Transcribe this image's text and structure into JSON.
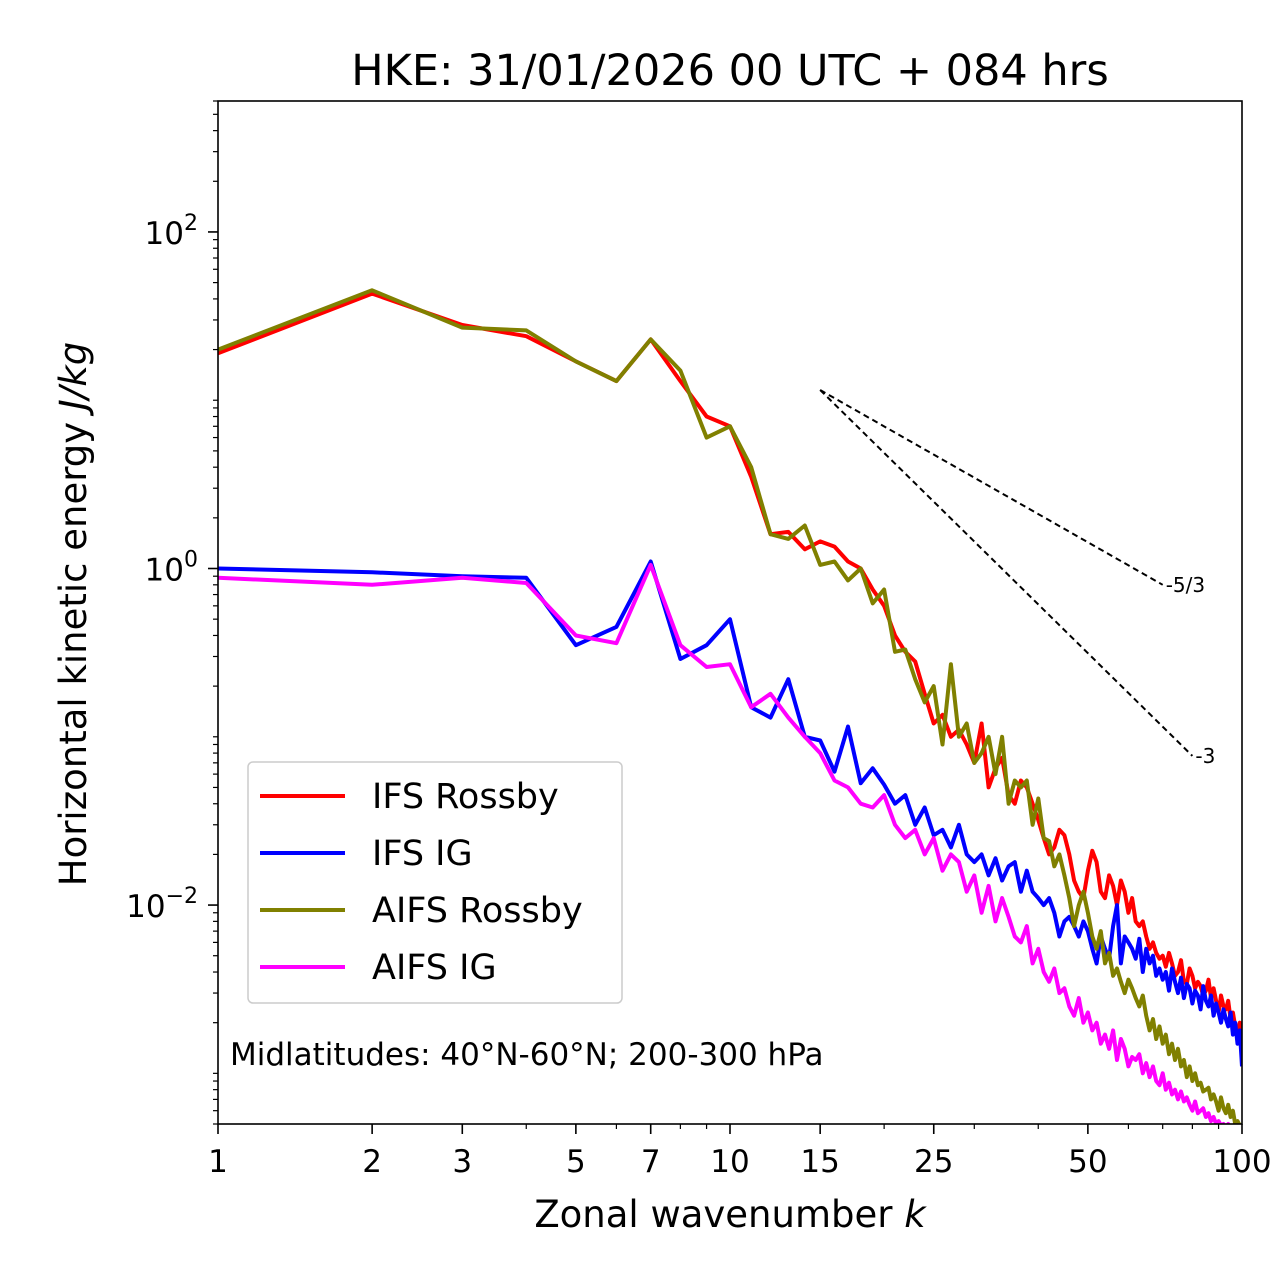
{
  "chart_data": {
    "type": "line",
    "title": "HKE: 31/01/2026 00 UTC + 084 hrs",
    "xlabel": "Zonal wavenumber",
    "xlabel_var": "k",
    "ylabel": "Horizontal kinetic energy",
    "ylabel_unit": "J/kg",
    "xscale": "log",
    "yscale": "log",
    "xlim": [
      1,
      100
    ],
    "ylim": [
      0.0005,
      600
    ],
    "x_ticks": [
      {
        "value": 1,
        "label": "1"
      },
      {
        "value": 2,
        "label": "2"
      },
      {
        "value": 3,
        "label": "3"
      },
      {
        "value": 5,
        "label": "5"
      },
      {
        "value": 7,
        "label": "7"
      },
      {
        "value": 10,
        "label": "10"
      },
      {
        "value": 15,
        "label": "15"
      },
      {
        "value": 25,
        "label": "25"
      },
      {
        "value": 50,
        "label": "50"
      },
      {
        "value": 100,
        "label": "100"
      }
    ],
    "y_ticks": [
      {
        "value": 100,
        "base": "10",
        "exp": "2"
      },
      {
        "value": 1,
        "base": "10",
        "exp": "0"
      },
      {
        "value": 0.01,
        "base": "10",
        "exp": "−2"
      }
    ],
    "annotation": "Midlatitudes: 40°N-60°N; 200-300 hPa",
    "legend_position": "lower-left",
    "reference_lines": [
      {
        "label": "-5/3",
        "x": [
          15,
          70
        ],
        "y": [
          11.5,
          0.8
        ],
        "color": "#000000",
        "style": "dashed"
      },
      {
        "label": "-3",
        "x": [
          15,
          80
        ],
        "y": [
          11.5,
          0.077
        ],
        "color": "#000000",
        "style": "dashed"
      }
    ],
    "series": [
      {
        "name": "IFS Rossby",
        "color": "#ff0000",
        "x": [
          1,
          2,
          3,
          4,
          5,
          6,
          7,
          8,
          9,
          10,
          11,
          12,
          13,
          14,
          15,
          16,
          17,
          18,
          19,
          20,
          21,
          22,
          23,
          24,
          25,
          26,
          27,
          28,
          29,
          30,
          31,
          32,
          33,
          34,
          35,
          36,
          37,
          38,
          39,
          40,
          41,
          42,
          43,
          44,
          45,
          46,
          47,
          48,
          49,
          50,
          51,
          52,
          53,
          54,
          55,
          56,
          57,
          58,
          59,
          60,
          61,
          62,
          63,
          64,
          65,
          66,
          67,
          68,
          69,
          70,
          71,
          72,
          73,
          74,
          75,
          76,
          77,
          78,
          79,
          80,
          81,
          82,
          83,
          84,
          85,
          86,
          87,
          88,
          89,
          90,
          91,
          92,
          93,
          94,
          95,
          96,
          97,
          98,
          99,
          100
        ],
        "y": [
          19,
          43,
          28,
          24,
          17,
          13,
          23,
          13,
          8,
          7,
          3.5,
          1.6,
          1.65,
          1.3,
          1.45,
          1.35,
          1.1,
          1.0,
          0.75,
          0.6,
          0.4,
          0.32,
          0.28,
          0.18,
          0.12,
          0.135,
          0.1,
          0.11,
          0.09,
          0.07,
          0.12,
          0.05,
          0.065,
          0.075,
          0.045,
          0.04,
          0.055,
          0.05,
          0.04,
          0.032,
          0.025,
          0.02,
          0.022,
          0.028,
          0.026,
          0.02,
          0.014,
          0.012,
          0.011,
          0.016,
          0.021,
          0.018,
          0.012,
          0.011,
          0.015,
          0.013,
          0.01,
          0.014,
          0.012,
          0.009,
          0.011,
          0.008,
          0.0075,
          0.008,
          0.0065,
          0.0055,
          0.006,
          0.0052,
          0.0048,
          0.005,
          0.0043,
          0.0052,
          0.0045,
          0.0038,
          0.004,
          0.0047,
          0.0035,
          0.0034,
          0.0042,
          0.0038,
          0.0032,
          0.0035,
          0.0033,
          0.0029,
          0.0031,
          0.0036,
          0.0028,
          0.0032,
          0.0027,
          0.0023,
          0.0029,
          0.0025,
          0.0024,
          0.0027,
          0.0021,
          0.0023,
          0.0019,
          0.0018,
          0.002,
          0.0013
        ]
      },
      {
        "name": "IFS IG",
        "color": "#0000ff",
        "x": [
          1,
          2,
          3,
          4,
          5,
          6,
          7,
          8,
          9,
          10,
          11,
          12,
          13,
          14,
          15,
          16,
          17,
          18,
          19,
          20,
          21,
          22,
          23,
          24,
          25,
          26,
          27,
          28,
          29,
          30,
          31,
          32,
          33,
          34,
          35,
          36,
          37,
          38,
          39,
          40,
          41,
          42,
          43,
          44,
          45,
          46,
          47,
          48,
          49,
          50,
          51,
          52,
          53,
          54,
          55,
          56,
          57,
          58,
          59,
          60,
          61,
          62,
          63,
          64,
          65,
          66,
          67,
          68,
          69,
          70,
          71,
          72,
          73,
          74,
          75,
          76,
          77,
          78,
          79,
          80,
          81,
          82,
          83,
          84,
          85,
          86,
          87,
          88,
          89,
          90,
          91,
          92,
          93,
          94,
          95,
          96,
          97,
          98,
          99,
          100
        ],
        "y": [
          1.0,
          0.95,
          0.9,
          0.88,
          0.35,
          0.45,
          1.1,
          0.29,
          0.35,
          0.5,
          0.15,
          0.13,
          0.22,
          0.1,
          0.095,
          0.062,
          0.115,
          0.053,
          0.065,
          0.052,
          0.04,
          0.045,
          0.03,
          0.038,
          0.026,
          0.028,
          0.022,
          0.03,
          0.02,
          0.018,
          0.02,
          0.015,
          0.019,
          0.014,
          0.017,
          0.018,
          0.012,
          0.016,
          0.012,
          0.011,
          0.01,
          0.011,
          0.009,
          0.0065,
          0.008,
          0.0085,
          0.0075,
          0.0065,
          0.008,
          0.007,
          0.0055,
          0.0045,
          0.0065,
          0.0055,
          0.0048,
          0.0075,
          0.01,
          0.0045,
          0.0065,
          0.006,
          0.0055,
          0.0048,
          0.0063,
          0.004,
          0.0055,
          0.0045,
          0.005,
          0.0038,
          0.0042,
          0.0036,
          0.004,
          0.0031,
          0.0042,
          0.0035,
          0.003,
          0.0037,
          0.0028,
          0.0034,
          0.0032,
          0.0026,
          0.0031,
          0.0029,
          0.0024,
          0.0033,
          0.0027,
          0.0025,
          0.0029,
          0.0022,
          0.0026,
          0.0023,
          0.002,
          0.0024,
          0.0021,
          0.0019,
          0.0023,
          0.0017,
          0.002,
          0.0015,
          0.0018,
          0.0011
        ]
      },
      {
        "name": "AIFS Rossby",
        "color": "#808000",
        "x": [
          1,
          2,
          3,
          4,
          5,
          6,
          7,
          8,
          9,
          10,
          11,
          12,
          13,
          14,
          15,
          16,
          17,
          18,
          19,
          20,
          21,
          22,
          23,
          24,
          25,
          26,
          27,
          28,
          29,
          30,
          31,
          32,
          33,
          34,
          35,
          36,
          37,
          38,
          39,
          40,
          41,
          42,
          43,
          44,
          45,
          46,
          47,
          48,
          49,
          50,
          51,
          52,
          53,
          54,
          55,
          56,
          57,
          58,
          59,
          60,
          61,
          62,
          63,
          64,
          65,
          66,
          67,
          68,
          69,
          70,
          71,
          72,
          73,
          74,
          75,
          76,
          77,
          78,
          79,
          80,
          81,
          82,
          83,
          84,
          85,
          86,
          87,
          88,
          89,
          90,
          91,
          92,
          93,
          94,
          95,
          96,
          97,
          98,
          99,
          100
        ],
        "y": [
          20,
          45,
          27,
          26,
          17,
          13,
          23,
          15,
          6,
          7,
          4,
          1.6,
          1.5,
          1.8,
          1.05,
          1.1,
          0.85,
          1.0,
          0.62,
          0.75,
          0.32,
          0.33,
          0.22,
          0.16,
          0.2,
          0.09,
          0.27,
          0.1,
          0.12,
          0.07,
          0.08,
          0.1,
          0.06,
          0.1,
          0.04,
          0.055,
          0.05,
          0.055,
          0.03,
          0.043,
          0.025,
          0.024,
          0.017,
          0.02,
          0.015,
          0.011,
          0.0075,
          0.01,
          0.012,
          0.009,
          0.0065,
          0.0055,
          0.007,
          0.0045,
          0.0052,
          0.0038,
          0.0042,
          0.0035,
          0.003,
          0.0036,
          0.0032,
          0.0028,
          0.0025,
          0.0029,
          0.0022,
          0.0018,
          0.0021,
          0.0016,
          0.0019,
          0.0015,
          0.0017,
          0.0013,
          0.0015,
          0.0012,
          0.0014,
          0.0011,
          0.0012,
          0.00095,
          0.0011,
          0.0009,
          0.001,
          0.00085,
          0.00088,
          0.00078,
          0.0008,
          0.00082,
          0.0007,
          0.00075,
          0.00068,
          0.0006,
          0.00072,
          0.00062,
          0.00058,
          0.00065,
          0.00055,
          0.0006,
          0.0005,
          0.00052,
          0.00049,
          0.00048
        ]
      },
      {
        "name": "AIFS IG",
        "color": "#ff00ff",
        "x": [
          1,
          2,
          3,
          4,
          5,
          6,
          7,
          8,
          9,
          10,
          11,
          12,
          13,
          14,
          15,
          16,
          17,
          18,
          19,
          20,
          21,
          22,
          23,
          24,
          25,
          26,
          27,
          28,
          29,
          30,
          31,
          32,
          33,
          34,
          35,
          36,
          37,
          38,
          39,
          40,
          41,
          42,
          43,
          44,
          45,
          46,
          47,
          48,
          49,
          50,
          51,
          52,
          53,
          54,
          55,
          56,
          57,
          58,
          59,
          60,
          61,
          62,
          63,
          64,
          65,
          66,
          67,
          68,
          69,
          70,
          71,
          72,
          73,
          74,
          75,
          76,
          77,
          78,
          79,
          80,
          81,
          82,
          83,
          84,
          85,
          86,
          87,
          88,
          89,
          90,
          91,
          92,
          93,
          94,
          95,
          96,
          97,
          98,
          99,
          100
        ],
        "y": [
          0.88,
          0.8,
          0.88,
          0.82,
          0.4,
          0.36,
          1.05,
          0.35,
          0.26,
          0.27,
          0.15,
          0.18,
          0.13,
          0.1,
          0.08,
          0.055,
          0.05,
          0.04,
          0.038,
          0.045,
          0.03,
          0.025,
          0.028,
          0.02,
          0.025,
          0.016,
          0.02,
          0.018,
          0.012,
          0.015,
          0.009,
          0.013,
          0.008,
          0.011,
          0.0085,
          0.0065,
          0.006,
          0.0075,
          0.0045,
          0.0055,
          0.004,
          0.0035,
          0.0042,
          0.003,
          0.0032,
          0.0025,
          0.0022,
          0.0028,
          0.002,
          0.0023,
          0.0018,
          0.002,
          0.0015,
          0.0017,
          0.0014,
          0.0018,
          0.0012,
          0.0016,
          0.0014,
          0.0011,
          0.00125,
          0.0012,
          0.0013,
          0.001,
          0.00115,
          0.00095,
          0.0011,
          0.0009,
          0.00085,
          0.001,
          0.0008,
          0.00088,
          0.00075,
          0.0008,
          0.0007,
          0.00078,
          0.00068,
          0.00072,
          0.00065,
          0.0006,
          0.00068,
          0.00058,
          0.0006,
          0.00062,
          0.00055,
          0.00058,
          0.00052,
          0.00055,
          0.0005,
          0.00052,
          0.00049,
          0.0005,
          0.00048,
          0.0005,
          0.00047,
          0.00049,
          0.00046,
          0.00048,
          0.00047,
          0.00046
        ]
      }
    ]
  }
}
